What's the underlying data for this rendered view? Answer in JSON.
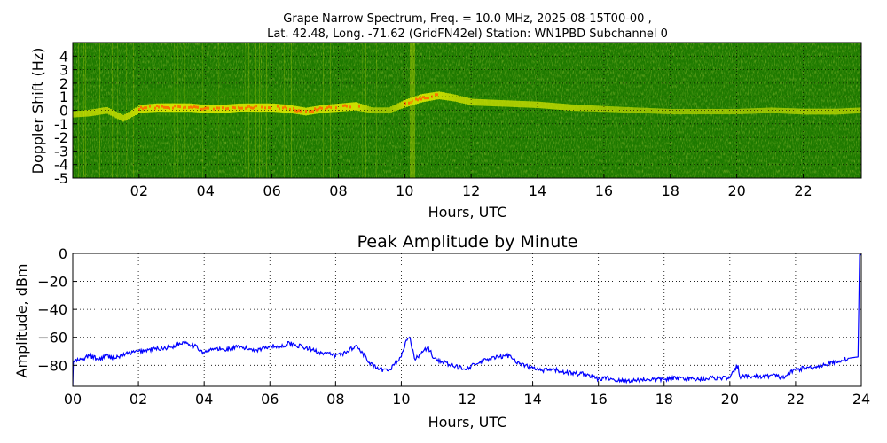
{
  "chart_data": [
    {
      "type": "heatmap",
      "title_line1": "Grape Narrow Spectrum, Freq. = 10.0 MHz, 2025-08-15T00-00 ,",
      "title_line2": "Lat.  42.48, Long. -71.62 (GridFN42el) Station: WN1PBD Subchannel 0",
      "xlabel": "Hours, UTC",
      "ylabel": "Doppler Shift (Hz)",
      "xlim": [
        0,
        23.75
      ],
      "ylim": [
        -5,
        5
      ],
      "xticks": [
        "02",
        "04",
        "06",
        "08",
        "10",
        "12",
        "14",
        "16",
        "18",
        "20",
        "22"
      ],
      "xtick_values": [
        2,
        4,
        6,
        8,
        10,
        12,
        14,
        16,
        18,
        20,
        22
      ],
      "yticks": [
        "4",
        "3",
        "2",
        "1",
        "0",
        "-1",
        "-2",
        "-3",
        "-4",
        "-5"
      ],
      "ytick_values": [
        4,
        3,
        2,
        1,
        0,
        -1,
        -2,
        -3,
        -4,
        -5
      ],
      "grid": true,
      "colors": {
        "background": "#1e7a00",
        "low": "#2f8f00",
        "mid": "#d8e600",
        "high": "#ff6a00"
      },
      "carrier_trace": {
        "hours": [
          0,
          0.5,
          1,
          1.5,
          2,
          2.5,
          3,
          3.5,
          4,
          4.5,
          5,
          5.5,
          6,
          6.5,
          7,
          7.5,
          8,
          8.5,
          9,
          9.5,
          10,
          10.5,
          11,
          11.5,
          12,
          13,
          14,
          15,
          16,
          17,
          18,
          19,
          20,
          21,
          22,
          23,
          23.75
        ],
        "shift_hz": [
          -0.3,
          -0.2,
          0.0,
          -0.6,
          0.1,
          0.2,
          0.2,
          0.2,
          0.1,
          0.1,
          0.2,
          0.2,
          0.2,
          0.1,
          -0.1,
          0.1,
          0.2,
          0.3,
          0.0,
          0.0,
          0.5,
          0.9,
          1.1,
          0.9,
          0.6,
          0.5,
          0.4,
          0.2,
          0.1,
          0.0,
          -0.1,
          -0.1,
          -0.1,
          0.0,
          -0.1,
          -0.1,
          0.0
        ],
        "intensity": [
          0.5,
          0.6,
          0.6,
          0.6,
          0.8,
          0.9,
          0.95,
          0.9,
          0.85,
          0.9,
          0.85,
          0.9,
          0.9,
          0.85,
          0.8,
          0.8,
          0.85,
          0.9,
          0.4,
          0.4,
          0.8,
          0.9,
          0.8,
          0.65,
          0.6,
          0.55,
          0.55,
          0.55,
          0.4,
          0.35,
          0.35,
          0.35,
          0.35,
          0.35,
          0.45,
          0.45,
          0.4
        ]
      }
    },
    {
      "type": "line",
      "title": "Peak Amplitude by Minute",
      "xlabel": "Hours, UTC",
      "ylabel": "Amplitude, dBm",
      "xlim": [
        0,
        24
      ],
      "ylim": [
        -95,
        0
      ],
      "xticks": [
        "00",
        "02",
        "04",
        "06",
        "08",
        "10",
        "12",
        "14",
        "16",
        "18",
        "20",
        "22",
        "24"
      ],
      "xtick_values": [
        0,
        2,
        4,
        6,
        8,
        10,
        12,
        14,
        16,
        18,
        20,
        22,
        24
      ],
      "yticks": [
        "0",
        "−20",
        "−40",
        "−60",
        "−80"
      ],
      "ytick_values": [
        0,
        -20,
        -40,
        -60,
        -80
      ],
      "grid": true,
      "line_color": "#0000ff",
      "series": [
        {
          "x": [
            0,
            0.02,
            0.3,
            0.5,
            0.8,
            1.0,
            1.3,
            1.6,
            2.0,
            2.3,
            2.6,
            3.0,
            3.4,
            3.7,
            4.0,
            4.3,
            4.6,
            5.0,
            5.3,
            5.6,
            6.0,
            6.3,
            6.6,
            7.0,
            7.3,
            7.6,
            8.0,
            8.3,
            8.6,
            8.8,
            9.0,
            9.3,
            9.6,
            9.8,
            10.0,
            10.15,
            10.25,
            10.4,
            10.6,
            10.8,
            11.0,
            11.3,
            11.6,
            12.0,
            12.3,
            12.6,
            13.0,
            13.3,
            13.6,
            14.0,
            14.3,
            14.6,
            15.0,
            15.3,
            15.6,
            16.0,
            16.3,
            16.6,
            17.0,
            17.5,
            18.0,
            18.5,
            19.0,
            19.5,
            20.0,
            20.25,
            20.3,
            20.35,
            20.6,
            21.0,
            21.3,
            21.6,
            22.0,
            22.3,
            22.6,
            23.0,
            23.3,
            23.6,
            23.9,
            23.95,
            24.0
          ],
          "y": [
            -95,
            -77,
            -76,
            -73,
            -76,
            -73,
            -75,
            -72,
            -70,
            -69,
            -68,
            -67,
            -63,
            -66,
            -71,
            -68,
            -69,
            -67,
            -68,
            -69,
            -66,
            -67,
            -64,
            -67,
            -69,
            -71,
            -73,
            -71,
            -66,
            -70,
            -78,
            -83,
            -84,
            -79,
            -74,
            -62,
            -60,
            -75,
            -72,
            -67,
            -75,
            -78,
            -81,
            -82,
            -79,
            -76,
            -74,
            -73,
            -79,
            -82,
            -84,
            -83,
            -85,
            -86,
            -86,
            -90,
            -89,
            -91,
            -91,
            -90,
            -90,
            -89,
            -90,
            -89,
            -89,
            -80,
            -88,
            -88,
            -88,
            -88,
            -87,
            -89,
            -83,
            -82,
            -81,
            -79,
            -77,
            -75,
            -74,
            -1,
            -1
          ]
        }
      ]
    }
  ]
}
